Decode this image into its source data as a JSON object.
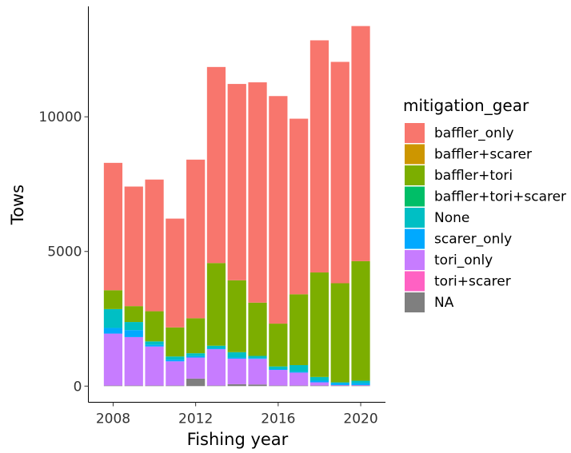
{
  "chart_data": {
    "type": "bar",
    "stacked": true,
    "title": "",
    "xlabel": "Fishing year",
    "ylabel": "Tows",
    "xlim": [
      2006.8,
      2021.2
    ],
    "ylim": [
      -600,
      14100
    ],
    "grid": false,
    "legend_position": "right",
    "x_ticks": [
      2008,
      2012,
      2016,
      2020
    ],
    "x_tick_labels": [
      "2008",
      "2012",
      "2016",
      "2020"
    ],
    "y_ticks": [
      0,
      5000,
      10000
    ],
    "y_tick_labels": [
      "0",
      "5000",
      "10000"
    ],
    "categories": [
      2008,
      2009,
      2010,
      2011,
      2012,
      2013,
      2014,
      2015,
      2016,
      2017,
      2018,
      2019,
      2020
    ],
    "legend_title": "mitigation_gear",
    "series": [
      {
        "name": "NA",
        "color": "#7f7f7f",
        "values": [
          20,
          20,
          20,
          20,
          280,
          20,
          70,
          60,
          20,
          20,
          20,
          20,
          20
        ]
      },
      {
        "name": "tori+scarer",
        "color": "#ff61c3",
        "values": [
          0,
          0,
          0,
          0,
          0,
          0,
          0,
          0,
          0,
          0,
          0,
          0,
          0
        ]
      },
      {
        "name": "tori_only",
        "color": "#c77cff",
        "values": [
          1930,
          1800,
          1450,
          900,
          780,
          1350,
          950,
          950,
          580,
          480,
          120,
          20,
          20
        ]
      },
      {
        "name": "scarer_only",
        "color": "#00a9ff",
        "values": [
          210,
          260,
          60,
          60,
          50,
          30,
          40,
          30,
          30,
          30,
          60,
          70,
          70
        ]
      },
      {
        "name": "None",
        "color": "#00bfc4",
        "values": [
          700,
          300,
          130,
          120,
          110,
          100,
          200,
          80,
          100,
          250,
          140,
          30,
          90
        ]
      },
      {
        "name": "baffler+tori+scarer",
        "color": "#00be67",
        "values": [
          0,
          0,
          0,
          0,
          0,
          0,
          0,
          0,
          0,
          0,
          0,
          0,
          0
        ]
      },
      {
        "name": "baffler+tori",
        "color": "#7cae00",
        "values": [
          700,
          590,
          1120,
          1080,
          1300,
          3070,
          2670,
          1980,
          1590,
          2630,
          3880,
          3680,
          4440
        ]
      },
      {
        "name": "baffler+scarer",
        "color": "#cd9600",
        "values": [
          0,
          0,
          0,
          0,
          0,
          0,
          0,
          0,
          0,
          0,
          0,
          0,
          0
        ]
      },
      {
        "name": "baffler_only",
        "color": "#f8766d",
        "values": [
          4730,
          4440,
          4890,
          4040,
          5890,
          7280,
          7290,
          8180,
          8450,
          6520,
          8620,
          8220,
          8730
        ]
      }
    ],
    "legend_order": [
      "baffler_only",
      "baffler+scarer",
      "baffler+tori",
      "baffler+tori+scarer",
      "None",
      "scarer_only",
      "tori_only",
      "tori+scarer",
      "NA"
    ]
  }
}
